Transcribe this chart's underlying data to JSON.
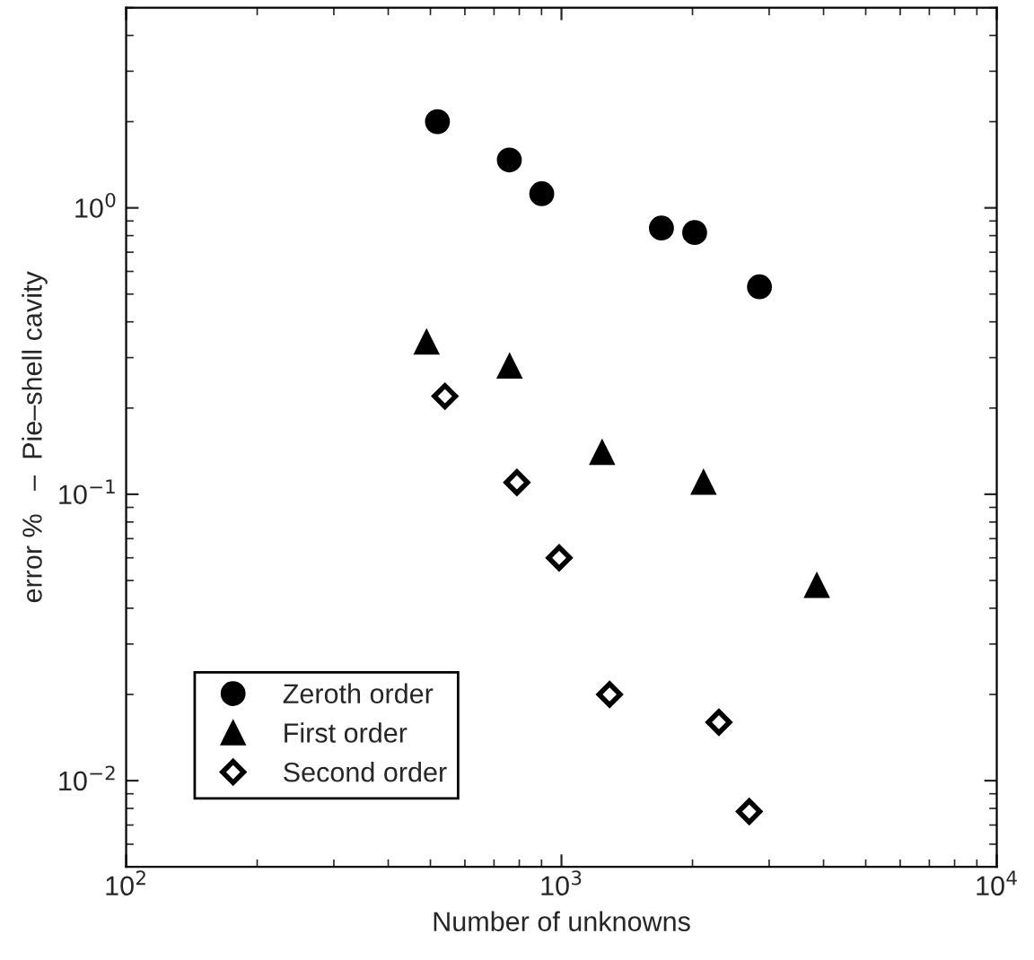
{
  "chart_data": {
    "type": "scatter",
    "xlabel": "Number of unknowns",
    "ylabel": "error %   –  Pie–shell cavity",
    "log": "xy",
    "xlim": [
      100,
      10000
    ],
    "ylim": [
      0.005,
      5
    ],
    "xticks": [
      {
        "value": 100,
        "label": "10$^{2}$"
      },
      {
        "value": 1000,
        "label": "10$^{3}$"
      },
      {
        "value": 10000,
        "label": "10$^{4}$"
      }
    ],
    "yticks": [
      {
        "value": 0.01,
        "label": "10$^{−2}$"
      },
      {
        "value": 0.1,
        "label": "10$^{−1}$"
      },
      {
        "value": 1,
        "label": "10$^{0}$"
      }
    ],
    "grid": false,
    "legend": "bottom left",
    "series": [
      {
        "name": "Zeroth order",
        "color": "#000000",
        "marker": "circle",
        "x": [
          519,
          759,
          901,
          1697,
          2023,
          2850
        ],
        "values": [
          2.0,
          1.47,
          1.12,
          0.85,
          0.82,
          0.53
        ]
      },
      {
        "name": "First order",
        "color": "#000000",
        "marker": "triangle",
        "x": [
          490,
          760,
          1240,
          2120,
          3860
        ],
        "values": [
          0.34,
          0.28,
          0.14,
          0.11,
          0.048
        ]
      },
      {
        "name": "Second order",
        "color": "#000000",
        "marker": "diamond",
        "x": [
          540,
          790,
          988,
          1290,
          2300,
          2700
        ],
        "values": [
          0.22,
          0.11,
          0.06,
          0.02,
          0.016,
          0.0078
        ]
      }
    ]
  }
}
